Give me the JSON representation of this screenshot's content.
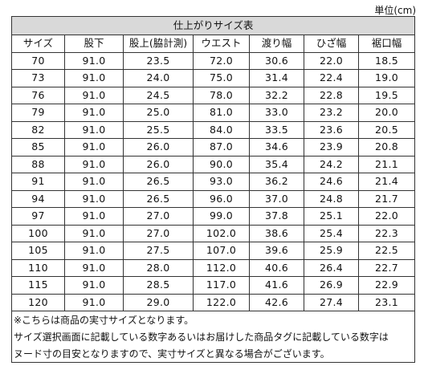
{
  "unit_label": "単位(cm)",
  "table": {
    "title": "仕上がりサイズ表",
    "headers": [
      "サイズ",
      "股下",
      "股上(脇計測)",
      "ウエスト",
      "渡り幅",
      "ひざ幅",
      "裾口幅"
    ],
    "rows": [
      [
        "70",
        "91.0",
        "23.5",
        "72.0",
        "30.6",
        "22.0",
        "18.5"
      ],
      [
        "73",
        "91.0",
        "24.0",
        "75.0",
        "31.4",
        "22.4",
        "19.0"
      ],
      [
        "76",
        "91.0",
        "24.5",
        "78.0",
        "32.2",
        "22.8",
        "19.5"
      ],
      [
        "79",
        "91.0",
        "25.0",
        "81.0",
        "33.0",
        "23.2",
        "20.0"
      ],
      [
        "82",
        "91.0",
        "25.5",
        "84.0",
        "33.5",
        "23.6",
        "20.5"
      ],
      [
        "85",
        "91.0",
        "26.0",
        "87.0",
        "34.6",
        "23.9",
        "20.8"
      ],
      [
        "88",
        "91.0",
        "26.0",
        "90.0",
        "35.4",
        "24.2",
        "21.1"
      ],
      [
        "91",
        "91.0",
        "26.5",
        "93.0",
        "36.2",
        "24.6",
        "21.4"
      ],
      [
        "94",
        "91.0",
        "26.5",
        "96.0",
        "37.0",
        "24.8",
        "21.7"
      ],
      [
        "97",
        "91.0",
        "27.0",
        "99.0",
        "37.8",
        "25.1",
        "22.0"
      ],
      [
        "100",
        "91.0",
        "27.0",
        "102.0",
        "38.6",
        "25.4",
        "22.3"
      ],
      [
        "105",
        "91.0",
        "27.5",
        "107.0",
        "39.6",
        "25.9",
        "22.5"
      ],
      [
        "110",
        "91.0",
        "28.0",
        "112.0",
        "40.6",
        "26.4",
        "22.7"
      ],
      [
        "115",
        "91.0",
        "28.5",
        "117.0",
        "41.6",
        "26.9",
        "22.9"
      ],
      [
        "120",
        "91.0",
        "29.0",
        "122.0",
        "42.6",
        "27.4",
        "23.1"
      ]
    ]
  },
  "notes": [
    "※こちらは商品の実寸サイズとなります。",
    "サイズ選択画面に記載している数字あるいはお届けした商品タグに記載している数字は",
    "ヌード寸の目安となりますので、実寸サイズと異なる場合がございます。"
  ],
  "colors": {
    "title_background": "#d9d9d9",
    "border": "#333333"
  }
}
